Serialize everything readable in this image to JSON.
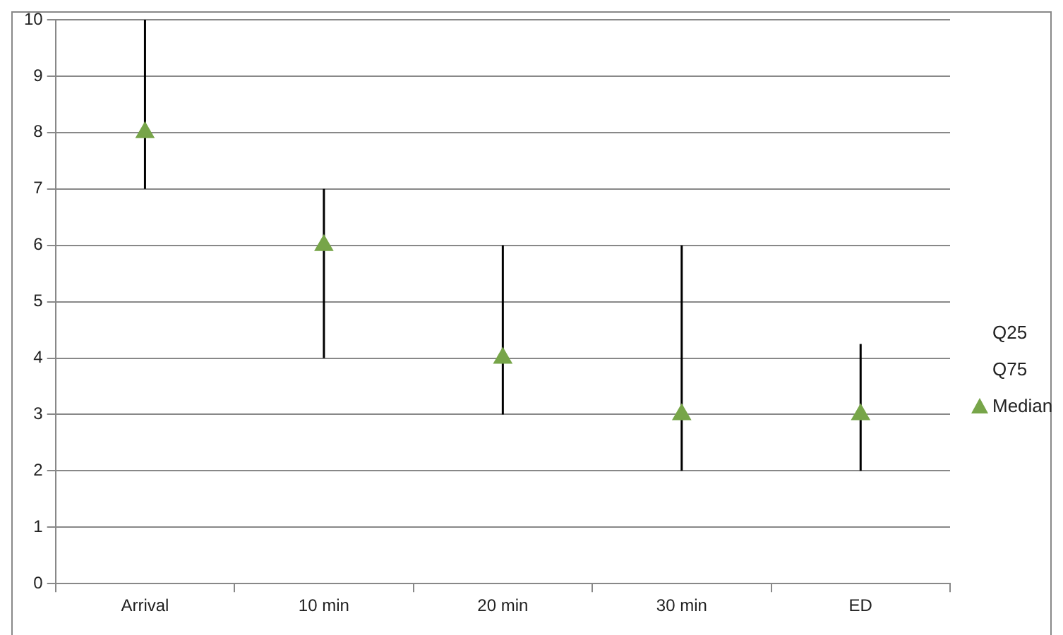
{
  "chart_data": {
    "type": "scatter",
    "categories": [
      "Arrival",
      "10 min",
      "20 min",
      "30 min",
      "ED"
    ],
    "series": [
      {
        "name": "Median",
        "color": "#77a549",
        "marker": "triangle",
        "values": [
          8,
          6,
          4,
          3,
          3
        ],
        "errors": [
          [
            7,
            10
          ],
          [
            4,
            7
          ],
          [
            3,
            6
          ],
          [
            2,
            6
          ],
          [
            2,
            4.25
          ]
        ]
      }
    ],
    "annotations": [
      "Q25",
      "Q75"
    ],
    "ylim": [
      0,
      10
    ],
    "yticks": [
      0,
      1,
      2,
      3,
      4,
      5,
      6,
      7,
      8,
      9,
      10
    ],
    "grid": "y",
    "legend": "right"
  }
}
